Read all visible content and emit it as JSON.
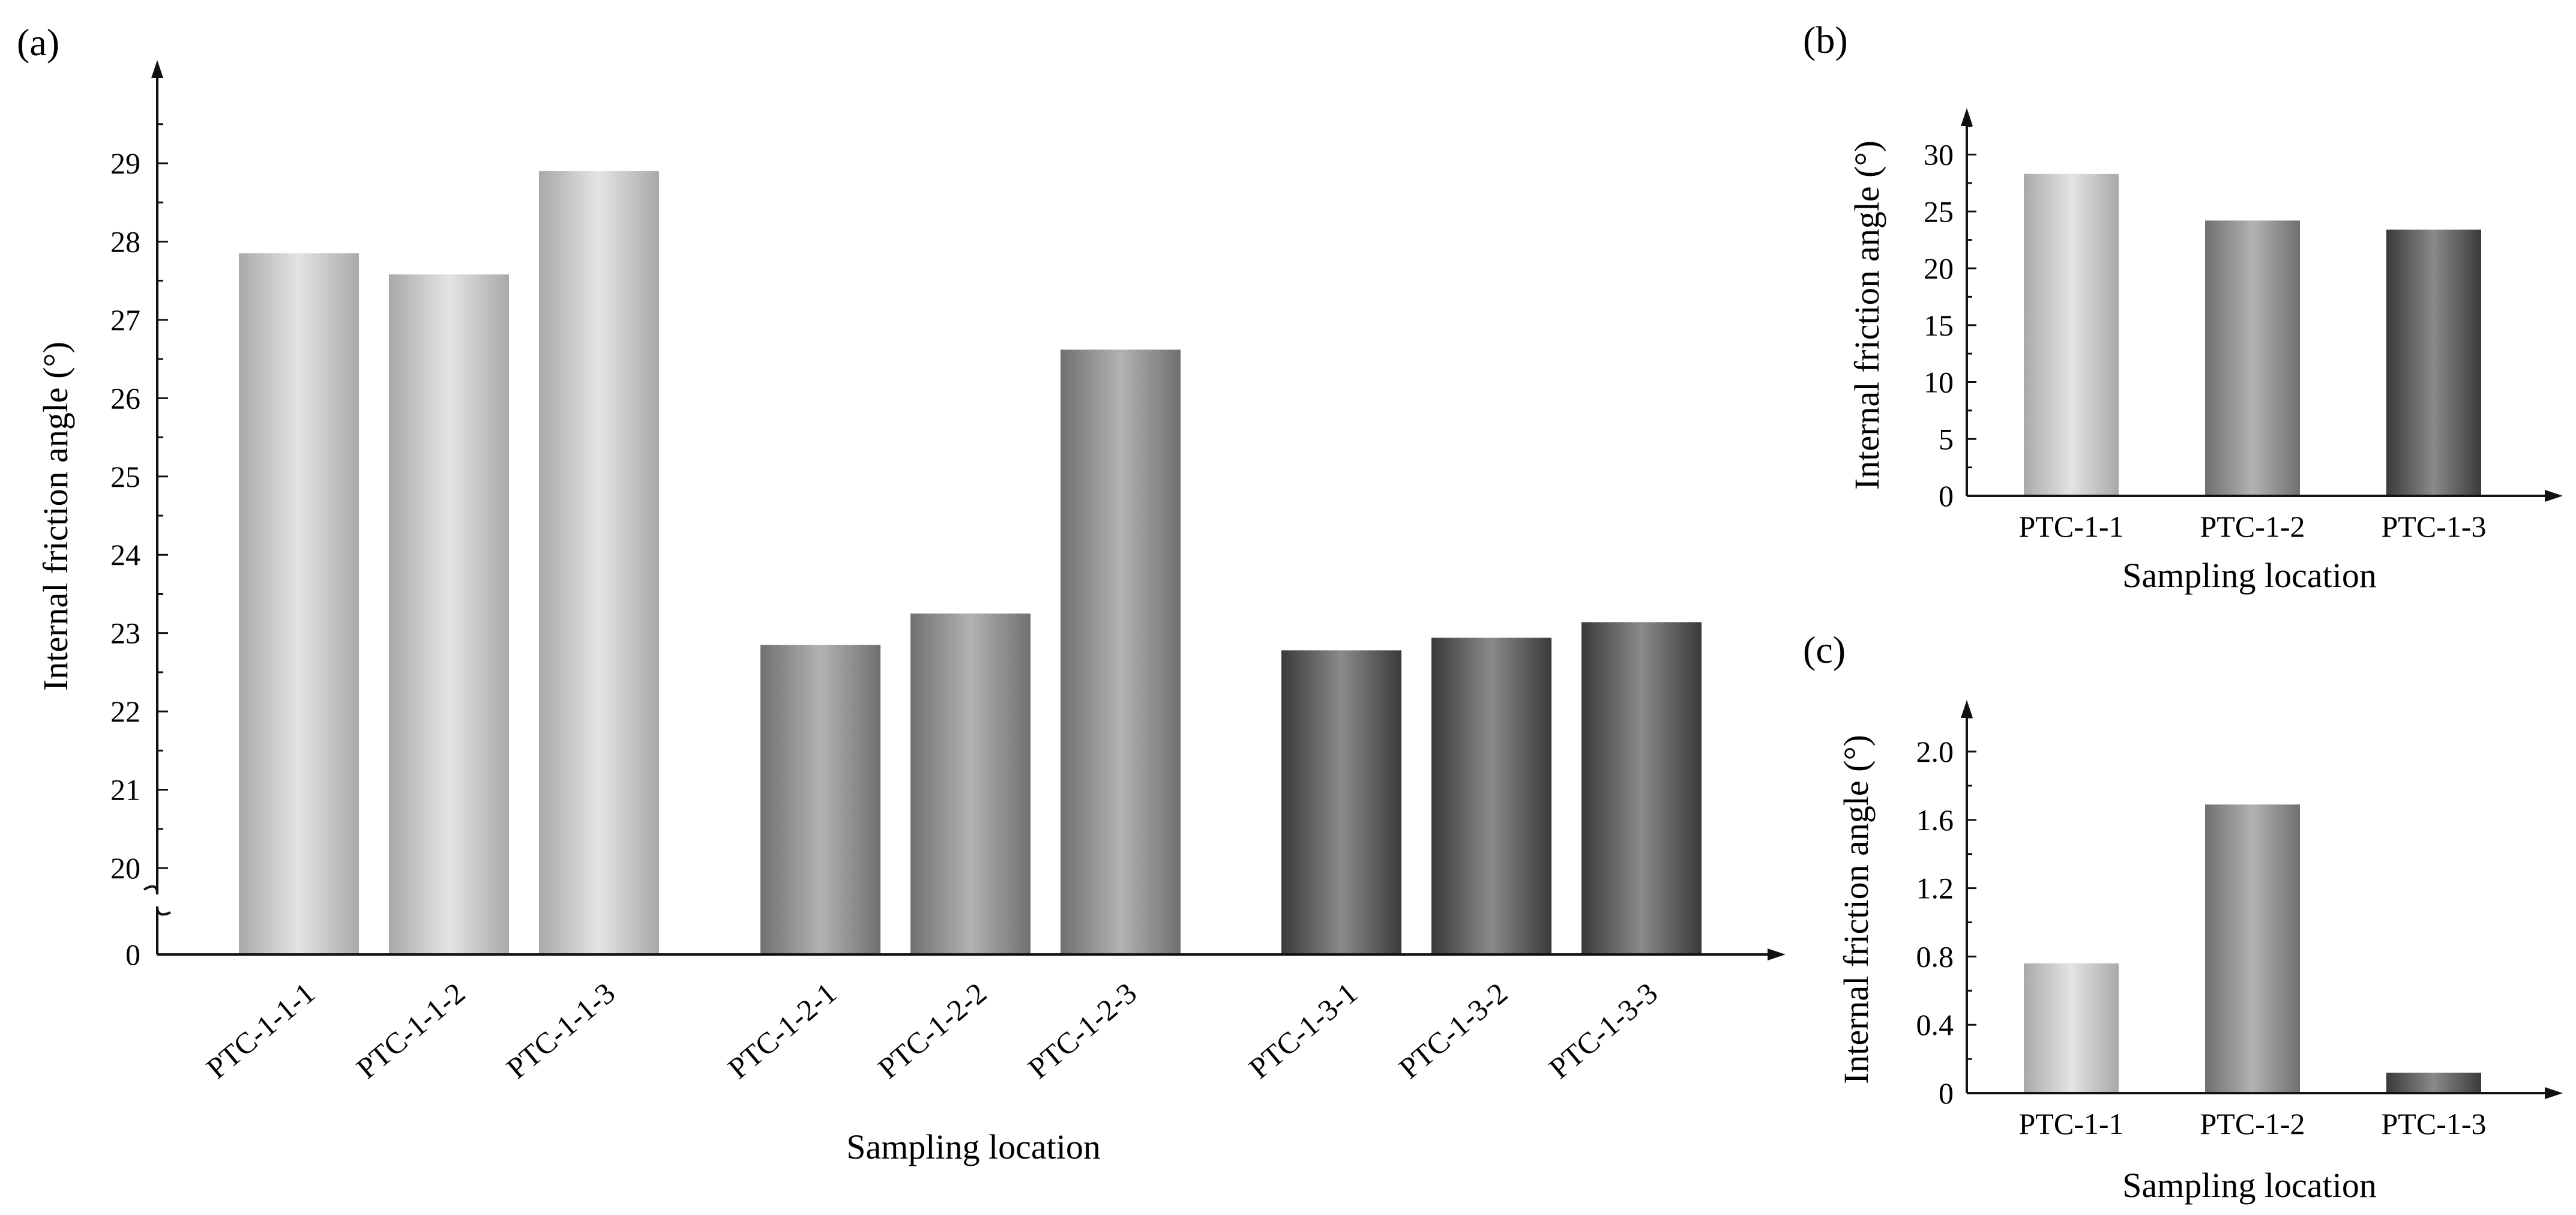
{
  "chart_data": [
    {
      "panel": "(a)",
      "type": "bar",
      "groups": [
        {
          "categories": [
            "PTC-1-1-1",
            "PTC-1-1-2",
            "PTC-1-1-3"
          ],
          "values": [
            27.85,
            27.58,
            28.9
          ],
          "shade": "light"
        },
        {
          "categories": [
            "PTC-1-2-1",
            "PTC-1-2-2",
            "PTC-1-2-3"
          ],
          "values": [
            22.85,
            23.25,
            26.62
          ],
          "shade": "medium"
        },
        {
          "categories": [
            "PTC-1-3-1",
            "PTC-1-3-2",
            "PTC-1-3-3"
          ],
          "values": [
            22.78,
            22.94,
            23.14
          ],
          "shade": "dark"
        }
      ],
      "xlabel": "Sampling location",
      "ylabel": "Internal friction angle (°)",
      "ylim": [
        20,
        30
      ],
      "axis_break": true,
      "yticks": [
        "0",
        "20",
        "21",
        "22",
        "23",
        "24",
        "25",
        "26",
        "27",
        "28",
        "29"
      ]
    },
    {
      "panel": "(b)",
      "type": "bar",
      "categories": [
        "PTC-1-1",
        "PTC-1-2",
        "PTC-1-3"
      ],
      "values": [
        28.3,
        24.2,
        23.4
      ],
      "shades": [
        "light",
        "medium",
        "dark"
      ],
      "xlabel": "Sampling location",
      "ylabel": "Internal friction angle (°)",
      "ylim": [
        0,
        33
      ],
      "yticks": [
        "0",
        "5",
        "10",
        "15",
        "20",
        "25",
        "30"
      ]
    },
    {
      "panel": "(c)",
      "type": "bar",
      "categories": [
        "PTC-1-1",
        "PTC-1-2",
        "PTC-1-3"
      ],
      "values": [
        0.76,
        1.69,
        0.12
      ],
      "shades": [
        "light",
        "medium",
        "dark"
      ],
      "xlabel": "Sampling location",
      "ylabel": "Internal friction angle (°)",
      "ylim": [
        0,
        2.2
      ],
      "yticks": [
        "0",
        "0.4",
        "0.8",
        "1.2",
        "1.6",
        "2.0"
      ]
    }
  ],
  "colors": {
    "light": {
      "edge": "#a9a9a9",
      "center": "#e4e4e4"
    },
    "medium": {
      "edge": "#707070",
      "center": "#b2b2b2"
    },
    "dark": {
      "edge": "#3a3a3a",
      "center": "#8a8a8a"
    }
  }
}
